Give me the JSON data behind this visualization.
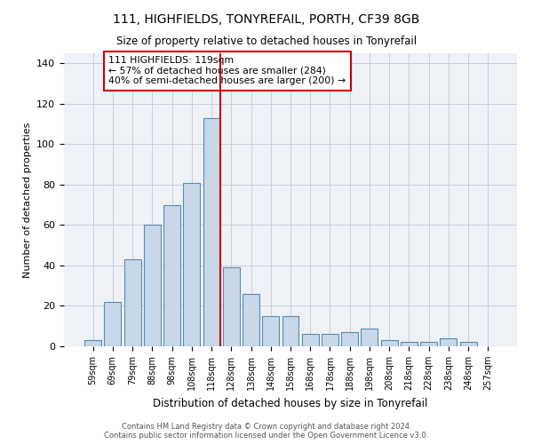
{
  "title1": "111, HIGHFIELDS, TONYREFAIL, PORTH, CF39 8GB",
  "title2": "Size of property relative to detached houses in Tonyrefail",
  "xlabel": "Distribution of detached houses by size in Tonyrefail",
  "ylabel": "Number of detached properties",
  "bar_labels": [
    "59sqm",
    "69sqm",
    "79sqm",
    "88sqm",
    "98sqm",
    "108sqm",
    "118sqm",
    "128sqm",
    "138sqm",
    "148sqm",
    "158sqm",
    "168sqm",
    "178sqm",
    "188sqm",
    "198sqm",
    "208sqm",
    "218sqm",
    "228sqm",
    "238sqm",
    "248sqm",
    "257sqm"
  ],
  "bar_values": [
    3,
    22,
    43,
    60,
    70,
    81,
    113,
    39,
    26,
    15,
    15,
    6,
    6,
    7,
    9,
    3,
    2,
    2,
    4,
    2,
    0
  ],
  "bar_color": "#c8d8e8",
  "bar_edge_color": "#5a8ab0",
  "vline_color": "#cc0000",
  "annotation_text": "111 HIGHFIELDS: 119sqm\n← 57% of detached houses are smaller (284)\n40% of semi-detached houses are larger (200) →",
  "annotation_box_color": "#ffffff",
  "annotation_box_edge": "#cc0000",
  "bg_color": "#eef2f7",
  "grid_color": "#c8cdd6",
  "footer1": "Contains HM Land Registry data © Crown copyright and database right 2024.",
  "footer2": "Contains public sector information licensed under the Open Government Licence v3.0.",
  "ylim": [
    0,
    145
  ],
  "yticks": [
    0,
    20,
    40,
    60,
    80,
    100,
    120,
    140
  ]
}
